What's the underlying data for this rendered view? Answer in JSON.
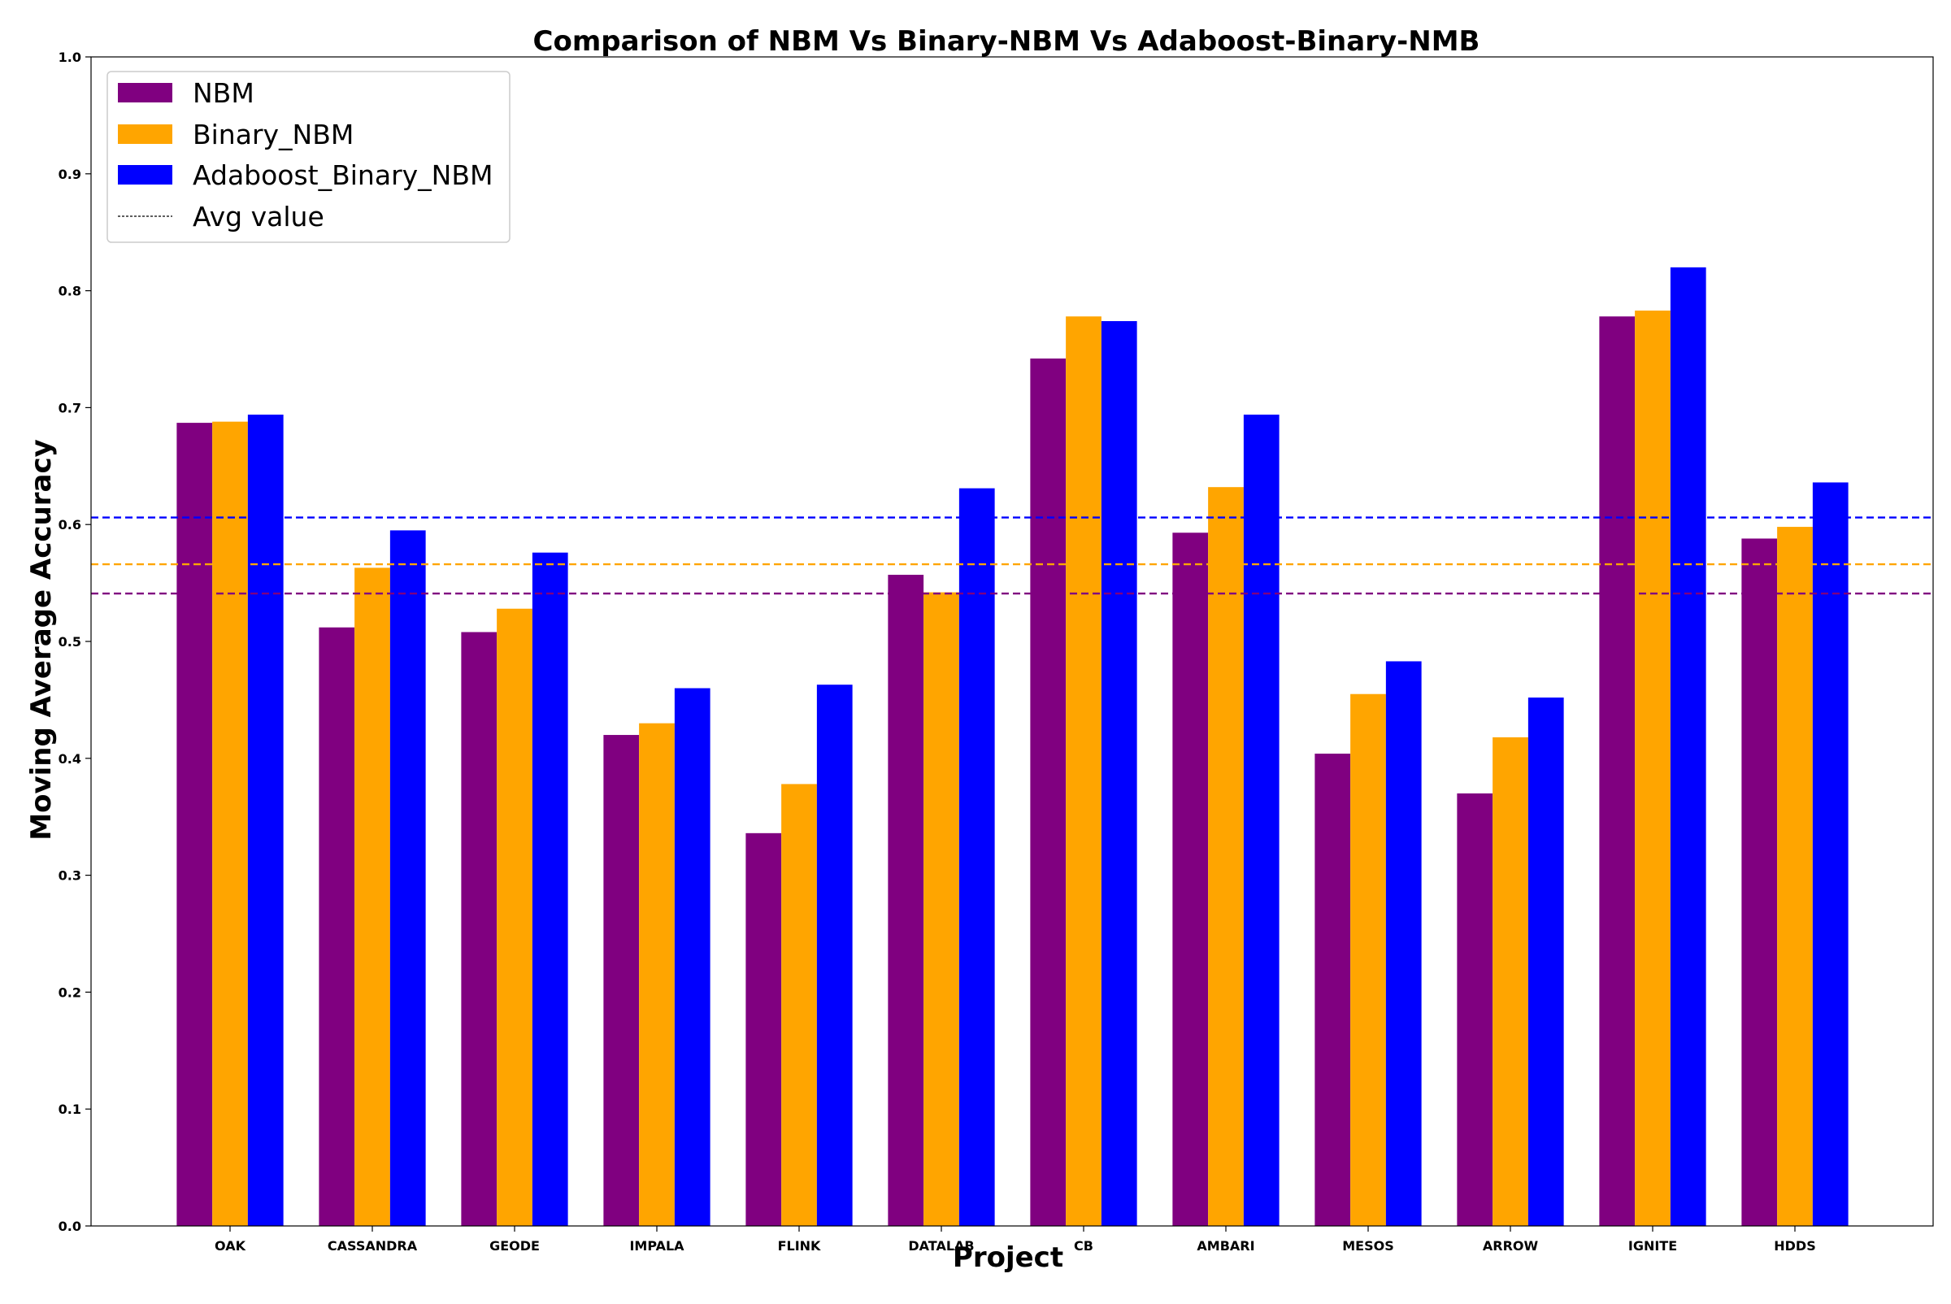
{
  "chart_data": {
    "type": "bar",
    "title": "Comparison of NBM Vs Binary-NBM Vs Adaboost-Binary-NMB",
    "xlabel": "Project",
    "ylabel": "Moving Average Accuracy",
    "ylim": [
      0.0,
      1.0
    ],
    "yticks": [
      "0.0",
      "0.1",
      "0.2",
      "0.3",
      "0.4",
      "0.5",
      "0.6",
      "0.7",
      "0.8",
      "0.9",
      "1.0"
    ],
    "grid": false,
    "legend_position": "top-left",
    "categories": [
      "OAK",
      "CASSANDRA",
      "GEODE",
      "IMPALA",
      "FLINK",
      "DATALAB",
      "CB",
      "AMBARI",
      "MESOS",
      "ARROW",
      "IGNITE",
      "HDDS"
    ],
    "series": [
      {
        "name": "NBM",
        "color": "#800080",
        "values": [
          0.687,
          0.512,
          0.508,
          0.42,
          0.336,
          0.557,
          0.742,
          0.593,
          0.404,
          0.37,
          0.778,
          0.588
        ],
        "average": 0.541
      },
      {
        "name": "Binary_NBM",
        "color": "#FFA500",
        "values": [
          0.688,
          0.563,
          0.528,
          0.43,
          0.378,
          0.542,
          0.778,
          0.632,
          0.455,
          0.418,
          0.783,
          0.598
        ],
        "average": 0.566
      },
      {
        "name": "Adaboost_Binary_NBM",
        "color": "#0000FF",
        "values": [
          0.694,
          0.595,
          0.576,
          0.46,
          0.463,
          0.631,
          0.774,
          0.694,
          0.483,
          0.452,
          0.82,
          0.636
        ],
        "average": 0.606
      }
    ],
    "avg_legend_label": "Avg value"
  }
}
